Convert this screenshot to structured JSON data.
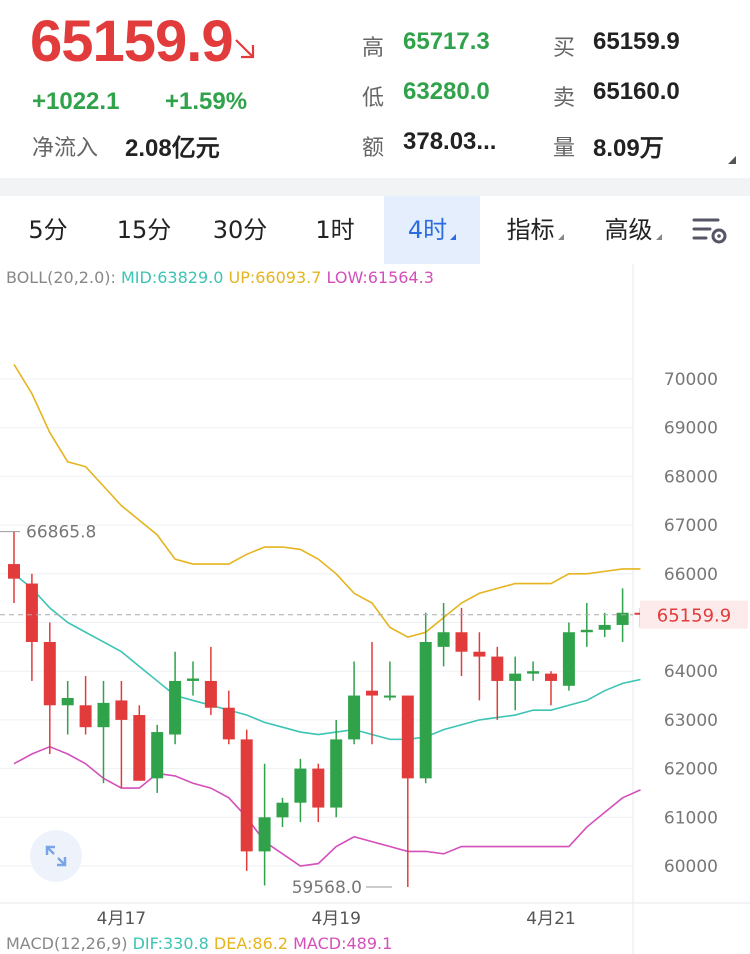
{
  "quote": {
    "price": "65159.9",
    "change": "+1022.1",
    "change_pct": "+1.59%",
    "net_inflow_label": "净流入",
    "net_inflow_value": "2.08亿元",
    "high_label": "高",
    "high_value": "65717.3",
    "low_label": "低",
    "low_value": "63280.0",
    "amount_label": "额",
    "amount_value": "378.03...",
    "bid_label": "买",
    "bid_value": "65159.9",
    "ask_label": "卖",
    "ask_value": "65160.0",
    "volume_label": "量",
    "volume_value": "8.09万",
    "colors": {
      "up": "#e23b3b",
      "down": "#2fa24a"
    }
  },
  "tabs": [
    {
      "label": "5分"
    },
    {
      "label": "15分"
    },
    {
      "label": "30分"
    },
    {
      "label": "1时"
    },
    {
      "label": "4时",
      "active": true
    },
    {
      "label": "指标"
    },
    {
      "label": "高级"
    }
  ],
  "settings_icon": "chart-settings-icon",
  "expand_icon": "expand-icon",
  "boll": {
    "name": "BOLL(20,2.0):",
    "mid": "MID:63829.0",
    "up": "UP:66093.7",
    "low": "LOW:61564.3"
  },
  "macd": {
    "name": "MACD(12,26,9)",
    "dif": "DIF:330.8",
    "dea": "DEA:86.2",
    "macd": "MACD:489.1"
  },
  "chart_data": {
    "type": "candlestick",
    "ylim": [
      59500,
      71000
    ],
    "y_ticks": [
      60000,
      61000,
      62000,
      63000,
      64000,
      65000,
      66000,
      67000,
      68000,
      69000,
      70000
    ],
    "x_ticks": [
      "4月17",
      "4月19",
      "4月21"
    ],
    "x_tick_index": [
      6,
      18,
      30
    ],
    "last_price": 65159.9,
    "last_price_label": "65159.9",
    "max_annotation": {
      "value": 66865.8,
      "label": "66865.8"
    },
    "min_annotation": {
      "value": 59568.0,
      "label": "59568.0"
    },
    "colors": {
      "up": "#2fa24a",
      "down": "#e23b3b",
      "mid": "#3cc4b4",
      "upper": "#e6b41e",
      "lower": "#d44fba"
    },
    "candles": [
      {
        "o": 66200,
        "h": 66860,
        "l": 65400,
        "c": 65900
      },
      {
        "o": 65800,
        "h": 66000,
        "l": 63800,
        "c": 64600
      },
      {
        "o": 64600,
        "h": 65000,
        "l": 62300,
        "c": 63300
      },
      {
        "o": 63300,
        "h": 63800,
        "l": 62700,
        "c": 63450
      },
      {
        "o": 63300,
        "h": 63900,
        "l": 62700,
        "c": 62850
      },
      {
        "o": 62850,
        "h": 63800,
        "l": 61700,
        "c": 63350
      },
      {
        "o": 63400,
        "h": 63800,
        "l": 61600,
        "c": 63000
      },
      {
        "o": 63100,
        "h": 63300,
        "l": 61800,
        "c": 61750
      },
      {
        "o": 61800,
        "h": 62900,
        "l": 61500,
        "c": 62750
      },
      {
        "o": 62700,
        "h": 64400,
        "l": 62500,
        "c": 63800
      },
      {
        "o": 63800,
        "h": 64200,
        "l": 63500,
        "c": 63850
      },
      {
        "o": 63800,
        "h": 64500,
        "l": 63100,
        "c": 63250
      },
      {
        "o": 63250,
        "h": 63600,
        "l": 62500,
        "c": 62600
      },
      {
        "o": 62600,
        "h": 62800,
        "l": 59900,
        "c": 60300
      },
      {
        "o": 60300,
        "h": 62100,
        "l": 59600,
        "c": 61000
      },
      {
        "o": 61000,
        "h": 61400,
        "l": 60800,
        "c": 61300
      },
      {
        "o": 61300,
        "h": 62200,
        "l": 60900,
        "c": 62000
      },
      {
        "o": 62000,
        "h": 62100,
        "l": 60900,
        "c": 61200
      },
      {
        "o": 61200,
        "h": 63000,
        "l": 61000,
        "c": 62600
      },
      {
        "o": 62600,
        "h": 64200,
        "l": 62500,
        "c": 63500
      },
      {
        "o": 63600,
        "h": 64600,
        "l": 62500,
        "c": 63500
      },
      {
        "o": 63500,
        "h": 64200,
        "l": 63400,
        "c": 63500
      },
      {
        "o": 63500,
        "h": 63500,
        "l": 59568,
        "c": 61800
      },
      {
        "o": 61800,
        "h": 65200,
        "l": 61700,
        "c": 64600
      },
      {
        "o": 64500,
        "h": 65400,
        "l": 64100,
        "c": 64800
      },
      {
        "o": 64800,
        "h": 65300,
        "l": 63900,
        "c": 64400
      },
      {
        "o": 64400,
        "h": 64800,
        "l": 63400,
        "c": 64300
      },
      {
        "o": 64300,
        "h": 64500,
        "l": 63000,
        "c": 63800
      },
      {
        "o": 63800,
        "h": 64300,
        "l": 63200,
        "c": 63950
      },
      {
        "o": 63950,
        "h": 64200,
        "l": 63800,
        "c": 64000
      },
      {
        "o": 63950,
        "h": 64000,
        "l": 63300,
        "c": 63800
      },
      {
        "o": 63700,
        "h": 65000,
        "l": 63600,
        "c": 64800
      },
      {
        "o": 64800,
        "h": 65400,
        "l": 64500,
        "c": 64850
      },
      {
        "o": 64850,
        "h": 65200,
        "l": 64700,
        "c": 64950
      },
      {
        "o": 64950,
        "h": 65700,
        "l": 64600,
        "c": 65200
      },
      {
        "o": 65200,
        "h": 65300,
        "l": 64900,
        "c": 65160
      }
    ],
    "upper_band": [
      70300,
      69700,
      68900,
      68300,
      68200,
      67800,
      67400,
      67100,
      66800,
      66300,
      66200,
      66200,
      66200,
      66400,
      66550,
      66550,
      66500,
      66300,
      66000,
      65600,
      65400,
      64900,
      64700,
      64800,
      65100,
      65400,
      65600,
      65700,
      65800,
      65800,
      65800,
      66000,
      66000,
      66050,
      66100,
      66100
    ],
    "mid_band": [
      66000,
      65700,
      65300,
      65000,
      64800,
      64600,
      64400,
      64100,
      63800,
      63500,
      63400,
      63300,
      63200,
      63100,
      62950,
      62850,
      62750,
      62700,
      62750,
      62800,
      62700,
      62600,
      62600,
      62650,
      62800,
      62900,
      63000,
      63050,
      63100,
      63200,
      63200,
      63300,
      63400,
      63600,
      63750,
      63830
    ],
    "lower_band": [
      62100,
      62300,
      62450,
      62300,
      62100,
      61800,
      61600,
      61600,
      61900,
      61850,
      61700,
      61600,
      61400,
      61000,
      60500,
      60250,
      60000,
      60050,
      60400,
      60600,
      60500,
      60400,
      60300,
      60300,
      60250,
      60400,
      60400,
      60400,
      60400,
      60400,
      60400,
      60400,
      60800,
      61100,
      61400,
      61564
    ]
  }
}
